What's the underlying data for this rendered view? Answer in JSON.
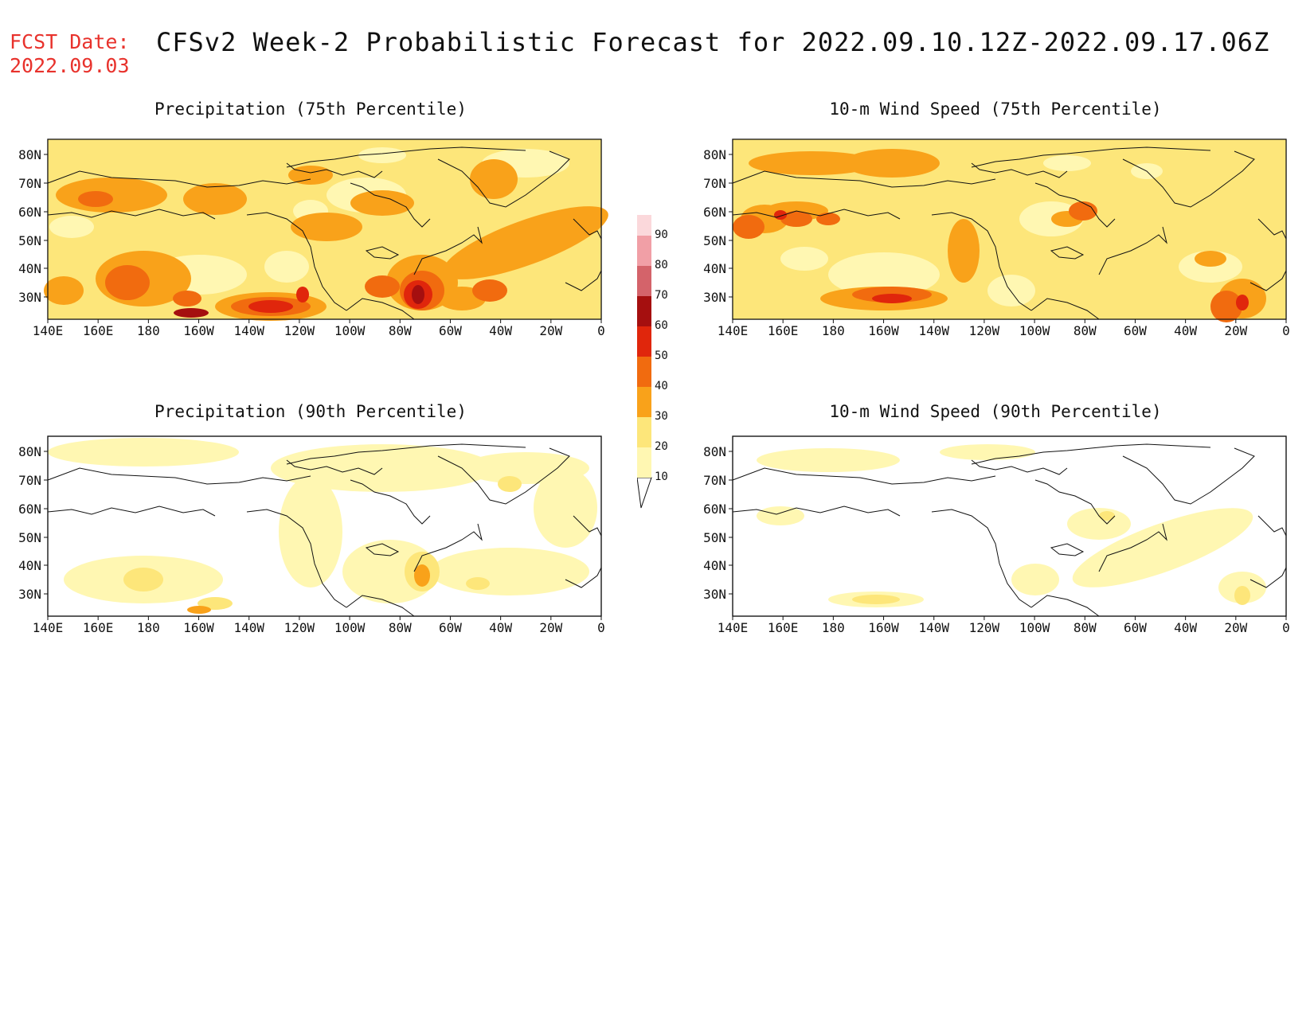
{
  "header": {
    "fcst_label": "FCST Date:",
    "fcst_date": "2022.09.03",
    "title": "CFSv2 Week-2 Probabilistic Forecast for 2022.09.10.12Z-2022.09.17.06Z"
  },
  "axes": {
    "lat_labels": [
      "80N",
      "70N",
      "60N",
      "50N",
      "40N",
      "30N"
    ],
    "lon_labels": [
      "140E",
      "160E",
      "180",
      "160W",
      "140W",
      "120W",
      "100W",
      "80W",
      "60W",
      "40W",
      "20W",
      "0"
    ]
  },
  "colors": {
    "level_10": "#fff7b2",
    "level_20": "#fde67a",
    "level_30": "#f9a21a",
    "level_40": "#f16b0f",
    "level_50": "#e0260c",
    "level_60": "#a50f0f",
    "level_70": "#d4636a",
    "level_80": "#f19fa6",
    "level_90": "#fbd8db",
    "coast": "#111111"
  },
  "colorbar": {
    "levels": [
      "10",
      "20",
      "30",
      "40",
      "50",
      "60",
      "70",
      "80",
      "90"
    ]
  },
  "panels": [
    {
      "id": "precip75",
      "title": "Precipitation (75th Percentile)"
    },
    {
      "id": "wind75",
      "title": "10-m Wind Speed (75th Percentile)"
    },
    {
      "id": "precip90",
      "title": "Precipitation (90th Percentile)"
    },
    {
      "id": "wind90",
      "title": "10-m Wind Speed (90th Percentile)"
    }
  ]
}
